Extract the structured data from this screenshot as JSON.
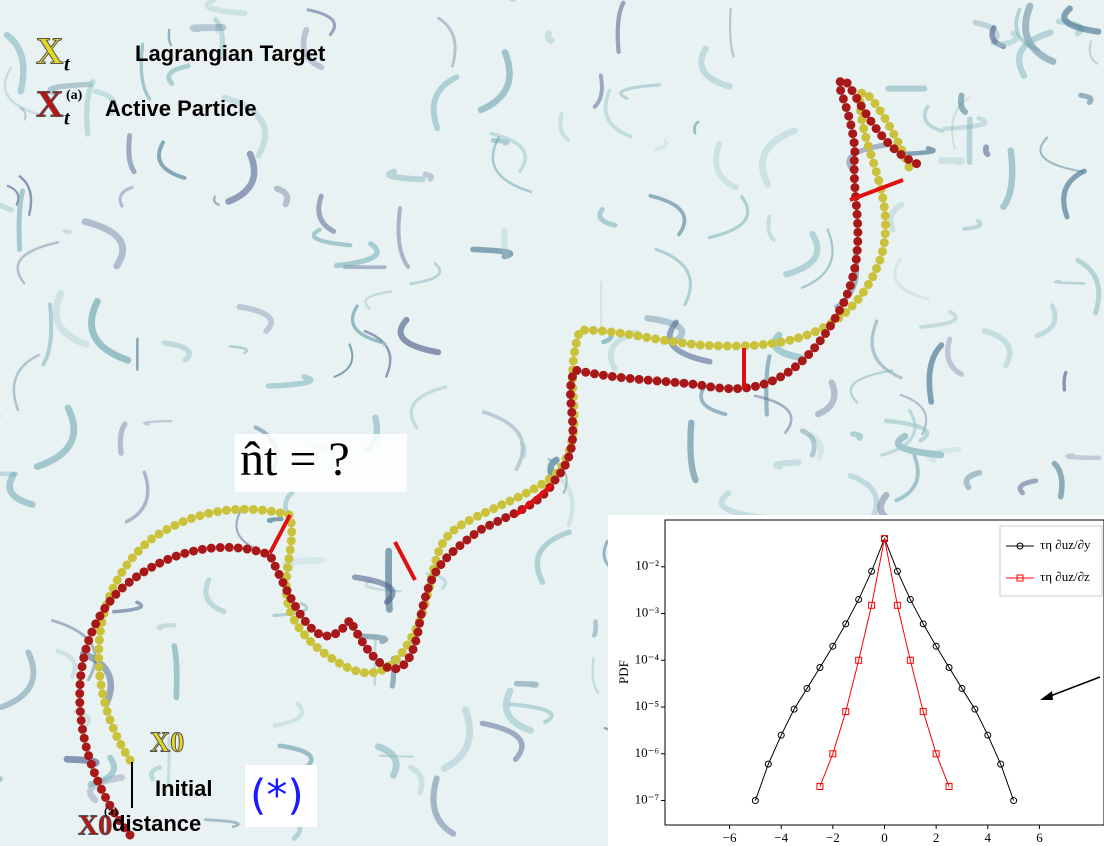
{
  "labels": {
    "target_symbol": "X",
    "target_sub": "t",
    "target_text": "Lagrangian Target",
    "particle_symbol": "X",
    "particle_sub": "t",
    "particle_sup": "(a)",
    "particle_text": "Active Particle",
    "heading_question": "n̂t = ?",
    "start_target": "X0",
    "start_particle": "X0",
    "start_particle_sup": "(a)",
    "initial_line1": "Initial",
    "initial_line2": "distance",
    "marker_note": "(*)"
  },
  "chart_data": {
    "type": "scatter-line",
    "ylabel": "PDF",
    "log_y": true,
    "x": [
      -5,
      -4.5,
      -4,
      -3.5,
      -3,
      -2.5,
      -2,
      -1.5,
      -1,
      -0.5,
      0,
      0.5,
      1,
      1.5,
      2,
      2.5,
      3,
      3.5,
      4,
      4.5,
      5
    ],
    "series": [
      {
        "name": "τη ∂uz/∂y",
        "color": "#000000",
        "marker": "circle",
        "values": [
          1e-07,
          6e-07,
          2.5e-06,
          9e-06,
          2.5e-05,
          7e-05,
          0.0002,
          0.0006,
          0.002,
          0.008,
          0.04,
          0.008,
          0.002,
          0.0006,
          0.0002,
          7e-05,
          2.5e-05,
          9e-06,
          2.5e-06,
          6e-07,
          1e-07
        ]
      },
      {
        "name": "τη ∂uz/∂z",
        "color": "#ff0000",
        "marker": "square",
        "values": [
          null,
          null,
          null,
          null,
          null,
          2e-07,
          1e-06,
          8e-06,
          0.0001,
          0.0015,
          0.04,
          0.0015,
          0.0001,
          8e-06,
          1e-06,
          2e-07,
          null,
          null,
          null,
          null,
          null
        ]
      }
    ],
    "xlim": [
      -8.5,
      8.5
    ],
    "ylim": [
      3e-08,
      0.1
    ],
    "xticks": [
      {
        "value": -6,
        "label": "−6"
      },
      {
        "value": -4,
        "label": "−4"
      },
      {
        "value": -2,
        "label": "−2"
      },
      0,
      2,
      4,
      6
    ],
    "yticks": [
      {
        "value": 1e-07,
        "label": "10⁻⁷"
      },
      {
        "value": 1e-06,
        "label": "10⁻⁶"
      },
      {
        "value": 1e-05,
        "label": "10⁻⁵"
      },
      {
        "value": 0.0001,
        "label": "10⁻⁴"
      },
      {
        "value": 0.001,
        "label": "10⁻³"
      },
      {
        "value": 0.01,
        "label": "10⁻²"
      }
    ],
    "legend": "upper right"
  }
}
